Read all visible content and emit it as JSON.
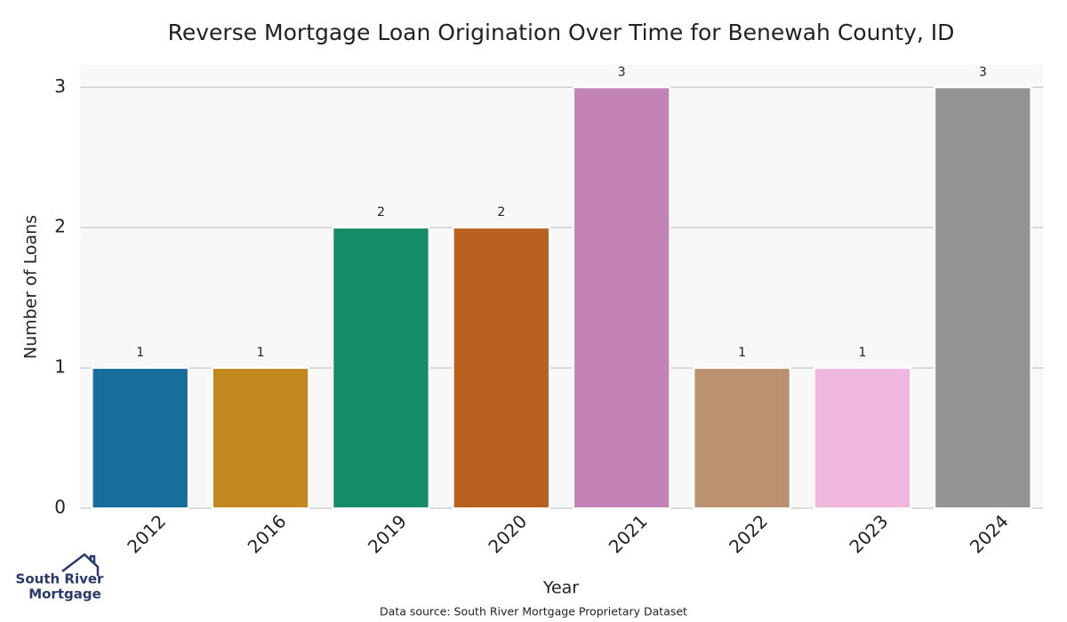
{
  "chart_data": {
    "type": "bar",
    "title": "Reverse Mortgage Loan Origination Over Time for Benewah County, ID",
    "x_label": "Year",
    "y_label": "Number of Loans",
    "categories": [
      "2012",
      "2016",
      "2019",
      "2020",
      "2021",
      "2022",
      "2023",
      "2024"
    ],
    "values": [
      1,
      1,
      2,
      2,
      3,
      1,
      1,
      3
    ],
    "colors": [
      "#176d9c",
      "#c38820",
      "#168b6a",
      "#b8601d",
      "#c383b6",
      "#bb916f",
      "#f0b7df",
      "#949494"
    ],
    "ylim": [
      0,
      3.16
    ],
    "yticks": [
      0,
      1,
      2,
      3
    ],
    "grid": true,
    "source": "Data source: South River Mortgage Proprietary Dataset",
    "logo": [
      "South River",
      "Mortgage"
    ]
  }
}
